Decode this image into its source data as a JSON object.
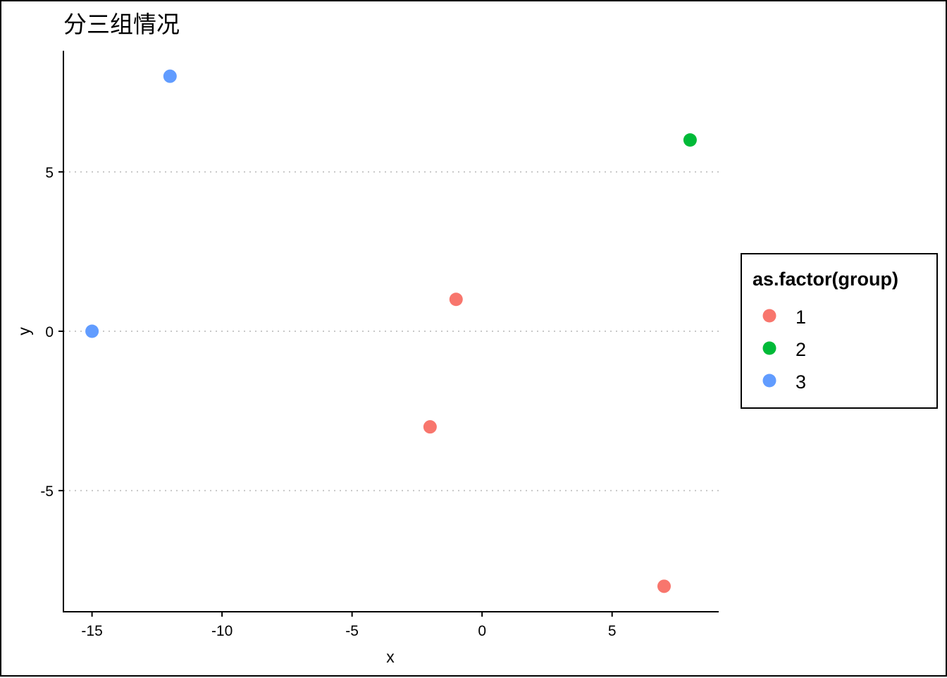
{
  "chart_data": {
    "type": "scatter",
    "title": "分三组情况",
    "xlabel": "x",
    "ylabel": "y",
    "xlim": [
      -16.1,
      9.1
    ],
    "ylim": [
      -8.8,
      8.8
    ],
    "x_ticks": [
      -15,
      -10,
      -5,
      0,
      5
    ],
    "y_ticks": [
      -5,
      0,
      5
    ],
    "gridlines": {
      "y": [
        -5,
        0,
        5
      ],
      "style": "dotted",
      "x": "none"
    },
    "legend": {
      "title": "as.factor(group)",
      "position": "right",
      "entries": [
        {
          "label": "1",
          "color": "#F8766D"
        },
        {
          "label": "2",
          "color": "#00BA38"
        },
        {
          "label": "3",
          "color": "#619CFF"
        }
      ]
    },
    "points": [
      {
        "x": -1,
        "y": 1,
        "group": "1"
      },
      {
        "x": -2,
        "y": -3,
        "group": "1"
      },
      {
        "x": 7,
        "y": -8,
        "group": "1"
      },
      {
        "x": 8,
        "y": 6,
        "group": "2"
      },
      {
        "x": -12,
        "y": 8,
        "group": "3"
      },
      {
        "x": -15,
        "y": 0,
        "group": "3"
      }
    ]
  }
}
